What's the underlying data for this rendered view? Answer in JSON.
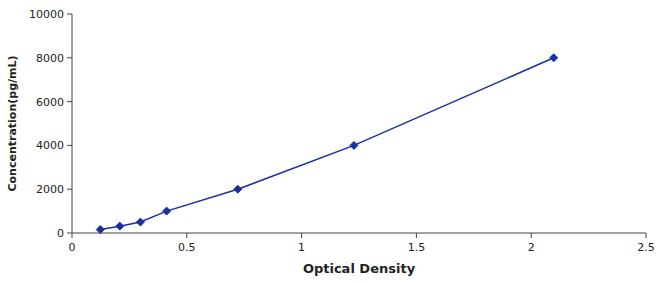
{
  "chart_data": {
    "type": "line",
    "xlabel": "Optical Density",
    "ylabel": "Concentration(pg/mL)",
    "x": [
      0.123,
      0.208,
      0.298,
      0.412,
      0.722,
      1.228,
      2.098
    ],
    "values": [
      156,
      313,
      500,
      1000,
      2000,
      4000,
      8000
    ],
    "color": "#1B2FA0",
    "marker": "diamond",
    "line_style": "solid",
    "xlim": [
      0,
      2.5
    ],
    "ylim": [
      0,
      10000
    ],
    "xticks": [
      0,
      0.5,
      1,
      1.5,
      2,
      2.5
    ],
    "yticks": [
      0,
      2000,
      4000,
      6000,
      8000,
      10000
    ],
    "grid": false
  }
}
